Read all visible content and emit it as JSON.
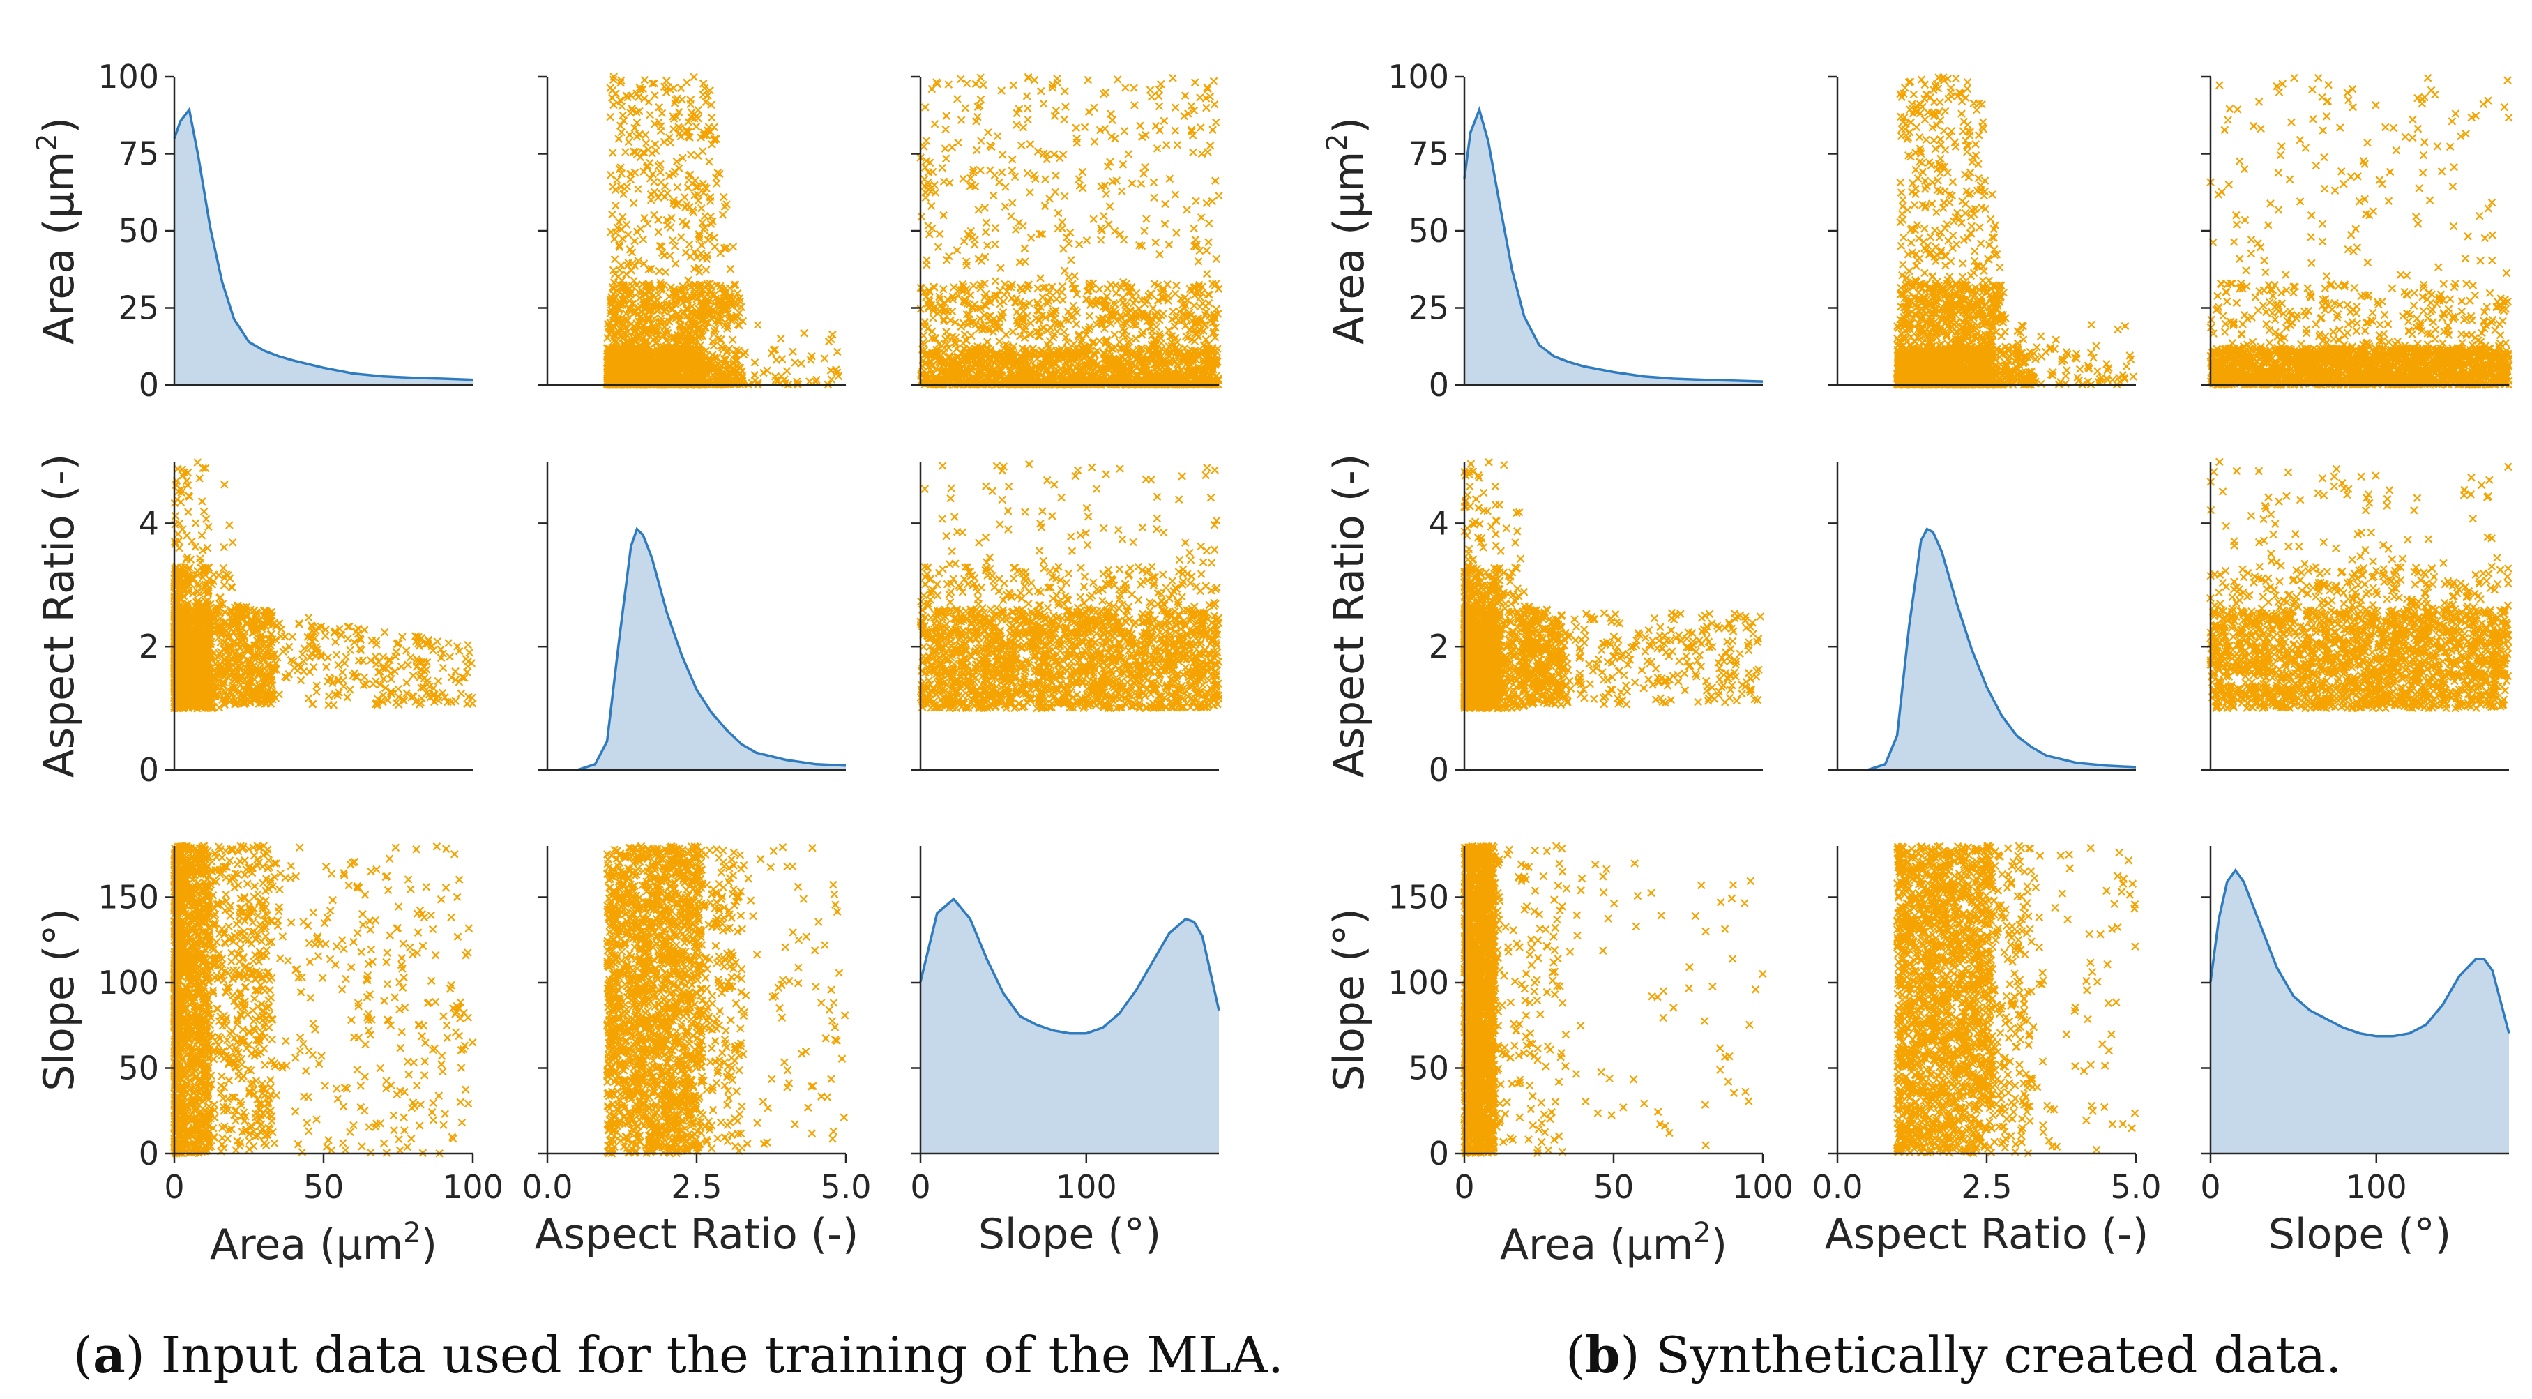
{
  "colors": {
    "kde_line": "#2f7bbf",
    "kde_fill": "#c5d9ea",
    "scatter": "#f5a300",
    "axis": "#262626"
  },
  "axis_labels": {
    "area_y": [
      "Area (µm",
      "2",
      ")"
    ],
    "area_x": [
      "Area (µm",
      "2",
      ")"
    ],
    "aspect": "Aspect Ratio (-)",
    "slope": "Slope (°)"
  },
  "chart_data": [
    {
      "id": "a",
      "type": "pairplot",
      "marker": "x",
      "variables": [
        {
          "name": "Area",
          "label": "Area (µm2)",
          "range": [
            0,
            100
          ],
          "ticks": [
            0,
            25,
            50,
            75,
            100
          ],
          "xticks": [
            0,
            50,
            100
          ],
          "xtick_labels": [
            "0",
            "50",
            "100"
          ]
        },
        {
          "name": "Aspect Ratio",
          "label": "Aspect Ratio (-)",
          "range": [
            0,
            5
          ],
          "ticks": [
            0,
            2,
            4
          ],
          "xticks": [
            0,
            2.5,
            5
          ],
          "xtick_labels": [
            "0.0",
            "2.5",
            "5.0"
          ]
        },
        {
          "name": "Slope",
          "label": "Slope (°)",
          "range": [
            0,
            180
          ],
          "ticks": [
            0,
            50,
            100,
            150
          ],
          "xticks": [
            0,
            100
          ],
          "xtick_labels": [
            "0",
            "100"
          ]
        }
      ],
      "kde": {
        "Area": {
          "x": [
            0,
            2,
            5,
            8,
            12,
            16,
            20,
            25,
            30,
            35,
            40,
            50,
            60,
            70,
            80,
            90,
            100
          ],
          "density": [
            0.86,
            0.92,
            0.96,
            0.8,
            0.55,
            0.36,
            0.23,
            0.15,
            0.12,
            0.1,
            0.085,
            0.06,
            0.04,
            0.03,
            0.025,
            0.022,
            0.018
          ]
        },
        "Aspect Ratio": {
          "x": [
            0.5,
            0.8,
            1.0,
            1.2,
            1.4,
            1.5,
            1.6,
            1.75,
            2.0,
            2.25,
            2.5,
            2.75,
            3.0,
            3.25,
            3.5,
            4.0,
            4.5,
            5.0
          ],
          "density": [
            0.0,
            0.02,
            0.1,
            0.45,
            0.78,
            0.84,
            0.82,
            0.74,
            0.55,
            0.4,
            0.28,
            0.2,
            0.14,
            0.09,
            0.06,
            0.035,
            0.02,
            0.015
          ]
        },
        "Slope": {
          "x": [
            0,
            10,
            20,
            30,
            40,
            50,
            60,
            70,
            80,
            90,
            100,
            110,
            120,
            130,
            140,
            150,
            160,
            165,
            170,
            180
          ],
          "density": [
            0.6,
            0.84,
            0.89,
            0.82,
            0.68,
            0.56,
            0.48,
            0.45,
            0.43,
            0.42,
            0.42,
            0.44,
            0.49,
            0.57,
            0.67,
            0.77,
            0.82,
            0.81,
            0.76,
            0.5
          ]
        }
      },
      "scatter_description": {
        "Area vs Aspect Ratio": "points concentrated at Area < 10 with Aspect Ratio 1.0–2.5; sparse spread up to Area 100",
        "Area vs Slope": "Slope spread uniformly 0–180, Area mostly below 20",
        "Aspect Ratio vs Slope": "Aspect Ratio mostly 1.0–3.0 across all Slope values"
      },
      "caption_label": "a",
      "caption_text": " Input data used for the training of the MLA."
    },
    {
      "id": "b",
      "type": "pairplot",
      "marker": "x",
      "variables": [
        {
          "name": "Area",
          "label": "Area (µm2)",
          "range": [
            0,
            100
          ],
          "ticks": [
            0,
            25,
            50,
            75,
            100
          ],
          "xticks": [
            0,
            50,
            100
          ],
          "xtick_labels": [
            "0",
            "50",
            "100"
          ]
        },
        {
          "name": "Aspect Ratio",
          "label": "Aspect Ratio (-)",
          "range": [
            0,
            5
          ],
          "ticks": [
            0,
            2,
            4
          ],
          "xticks": [
            0,
            2.5,
            5
          ],
          "xtick_labels": [
            "0.0",
            "2.5",
            "5.0"
          ]
        },
        {
          "name": "Slope",
          "label": "Slope (°)",
          "range": [
            0,
            180
          ],
          "ticks": [
            0,
            50,
            100,
            150
          ],
          "xticks": [
            0,
            100
          ],
          "xtick_labels": [
            "0",
            "100"
          ]
        }
      ],
      "kde": {
        "Area": {
          "x": [
            0,
            2,
            5,
            8,
            12,
            16,
            20,
            25,
            30,
            35,
            40,
            50,
            60,
            70,
            80,
            90,
            100
          ],
          "density": [
            0.72,
            0.88,
            0.96,
            0.85,
            0.62,
            0.4,
            0.24,
            0.14,
            0.1,
            0.08,
            0.065,
            0.045,
            0.03,
            0.022,
            0.018,
            0.015,
            0.012
          ]
        },
        "Aspect Ratio": {
          "x": [
            0.5,
            0.8,
            1.0,
            1.2,
            1.4,
            1.5,
            1.6,
            1.75,
            2.0,
            2.25,
            2.5,
            2.75,
            3.0,
            3.25,
            3.5,
            4.0,
            4.5,
            5.0
          ],
          "density": [
            0.0,
            0.02,
            0.12,
            0.5,
            0.8,
            0.84,
            0.83,
            0.76,
            0.58,
            0.42,
            0.29,
            0.19,
            0.12,
            0.08,
            0.05,
            0.025,
            0.015,
            0.01
          ]
        },
        "Slope": {
          "x": [
            0,
            5,
            10,
            15,
            20,
            30,
            40,
            50,
            60,
            70,
            80,
            90,
            100,
            110,
            120,
            130,
            140,
            150,
            160,
            165,
            170,
            180
          ],
          "density": [
            0.6,
            0.82,
            0.95,
            0.99,
            0.95,
            0.8,
            0.65,
            0.55,
            0.5,
            0.47,
            0.44,
            0.42,
            0.41,
            0.41,
            0.42,
            0.45,
            0.52,
            0.62,
            0.68,
            0.68,
            0.64,
            0.42
          ]
        }
      },
      "scatter_description": {
        "Area vs Aspect Ratio": "points concentrated at Area < 15 with Aspect Ratio 1.0–3.0",
        "Area vs Slope": "dense column near Area 0–10 across all Slope values",
        "Aspect Ratio vs Slope": "Aspect Ratio mostly 1.0–3.0 across all Slope values"
      },
      "caption_label": "b",
      "caption_text": " Synthetically created data."
    }
  ]
}
